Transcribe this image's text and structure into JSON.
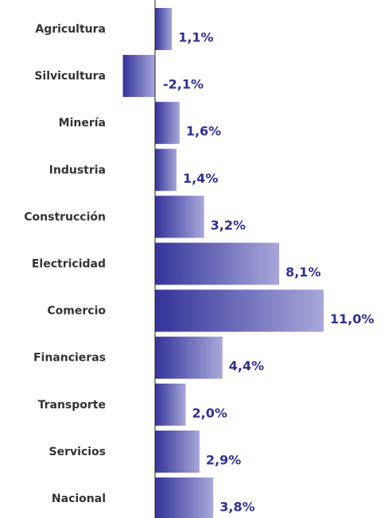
{
  "chart_data": {
    "type": "bar",
    "orientation": "horizontal",
    "categories": [
      "Agricultura",
      "Silvicultura",
      "Minería",
      "Industria",
      "Construcción",
      "Electricidad",
      "Comercio",
      "Financieras",
      "Transporte",
      "Servicios",
      "Nacional"
    ],
    "values": [
      1.1,
      -2.1,
      1.6,
      1.4,
      3.2,
      8.1,
      11.0,
      4.4,
      2.0,
      2.9,
      3.8
    ],
    "value_labels": [
      "1,1%",
      "-2,1%",
      "1,6%",
      "1,4%",
      "3,2%",
      "8,1%",
      "11,0%",
      "4,4%",
      "2,0%",
      "2,9%",
      "3,8%"
    ],
    "color": "#33339a"
  }
}
